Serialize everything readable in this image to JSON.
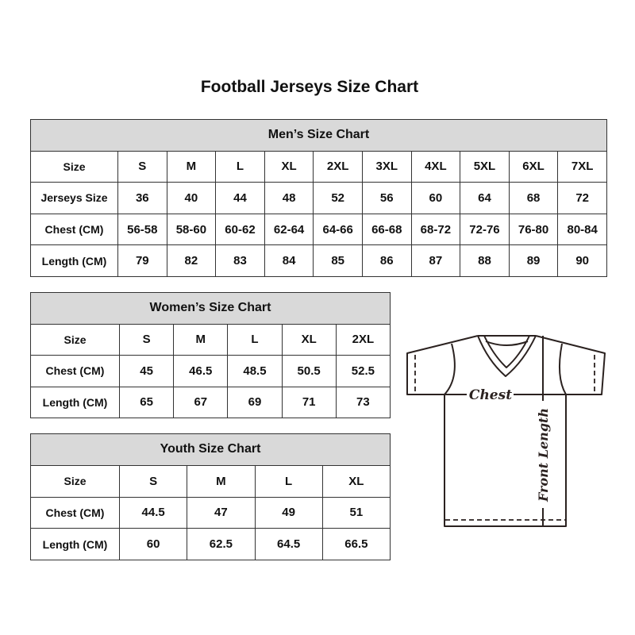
{
  "title": "Football Jerseys Size Chart",
  "men": {
    "caption": "Men’s Size Chart",
    "rows": [
      {
        "label": "Size",
        "values": [
          "S",
          "M",
          "L",
          "XL",
          "2XL",
          "3XL",
          "4XL",
          "5XL",
          "6XL",
          "7XL"
        ]
      },
      {
        "label": "Jerseys Size",
        "values": [
          "36",
          "40",
          "44",
          "48",
          "52",
          "56",
          "60",
          "64",
          "68",
          "72"
        ]
      },
      {
        "label": "Chest (CM)",
        "values": [
          "56-58",
          "58-60",
          "60-62",
          "62-64",
          "64-66",
          "66-68",
          "68-72",
          "72-76",
          "76-80",
          "80-84"
        ]
      },
      {
        "label": "Length (CM)",
        "values": [
          "79",
          "82",
          "83",
          "84",
          "85",
          "86",
          "87",
          "88",
          "89",
          "90"
        ]
      }
    ]
  },
  "women": {
    "caption": "Women’s Size Chart",
    "rows": [
      {
        "label": "Size",
        "values": [
          "S",
          "M",
          "L",
          "XL",
          "2XL"
        ]
      },
      {
        "label": "Chest (CM)",
        "values": [
          "45",
          "46.5",
          "48.5",
          "50.5",
          "52.5"
        ]
      },
      {
        "label": "Length (CM)",
        "values": [
          "65",
          "67",
          "69",
          "71",
          "73"
        ]
      }
    ]
  },
  "youth": {
    "caption": "Youth Size Chart",
    "rows": [
      {
        "label": "Size",
        "values": [
          "S",
          "M",
          "L",
          "XL"
        ]
      },
      {
        "label": "Chest (CM)",
        "values": [
          "44.5",
          "47",
          "49",
          "51"
        ]
      },
      {
        "label": "Length (CM)",
        "values": [
          "60",
          "62.5",
          "64.5",
          "66.5"
        ]
      }
    ]
  },
  "diagram": {
    "chest_label": "Chest",
    "length_label": "Front Length"
  },
  "colors": {
    "header_bg": "#d9d9d9",
    "border": "#333333",
    "diagram_line": "#2b2220"
  }
}
